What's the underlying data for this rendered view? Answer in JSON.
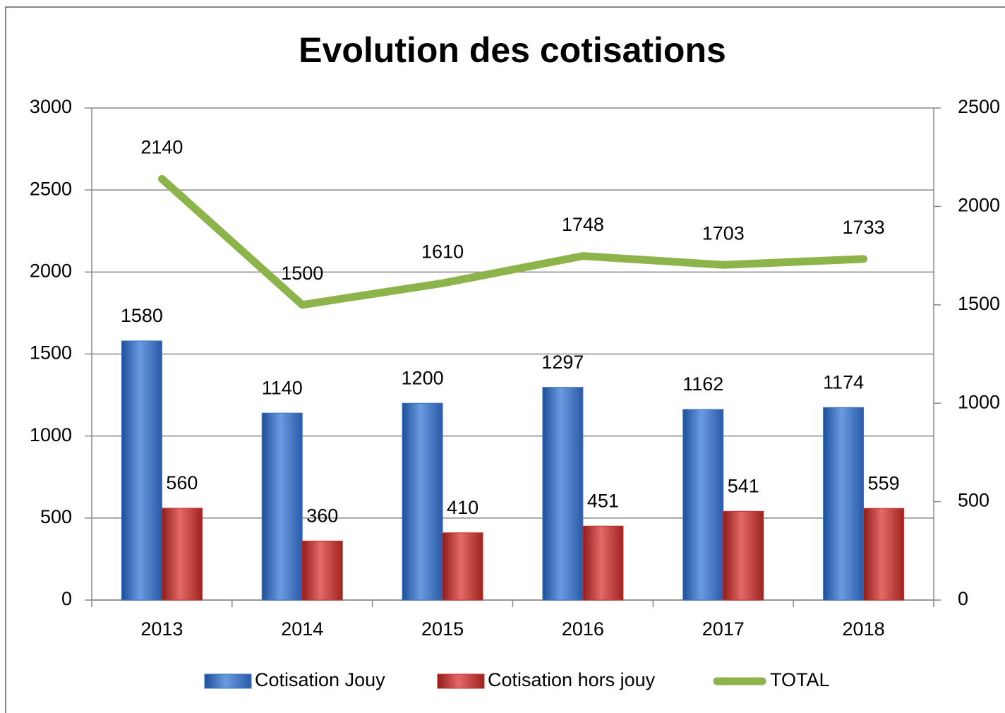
{
  "chart_data": {
    "type": "bar",
    "title": "Evolution des cotisations",
    "categories": [
      "2013",
      "2014",
      "2015",
      "2016",
      "2017",
      "2018"
    ],
    "series": [
      {
        "name": "Cotisation Jouy",
        "color": "#3d74c4",
        "values": [
          1580,
          1140,
          1200,
          1297,
          1162,
          1174
        ]
      },
      {
        "name": "Cotisation hors jouy",
        "color": "#c8302c",
        "values": [
          560,
          360,
          410,
          451,
          541,
          559
        ]
      },
      {
        "name": "TOTAL",
        "color": "#8db44a",
        "type": "line",
        "axis": "y2",
        "values": [
          2140,
          1500,
          1610,
          1748,
          1703,
          1733
        ]
      }
    ],
    "ylim": [
      0,
      3000
    ],
    "yticks": [
      0,
      500,
      1000,
      1500,
      2000,
      2500,
      3000
    ],
    "y2lim": [
      0,
      2500
    ],
    "y2ticks": [
      0,
      500,
      1000,
      1500,
      2000,
      2500
    ],
    "grid": true,
    "legend": "bottom"
  }
}
